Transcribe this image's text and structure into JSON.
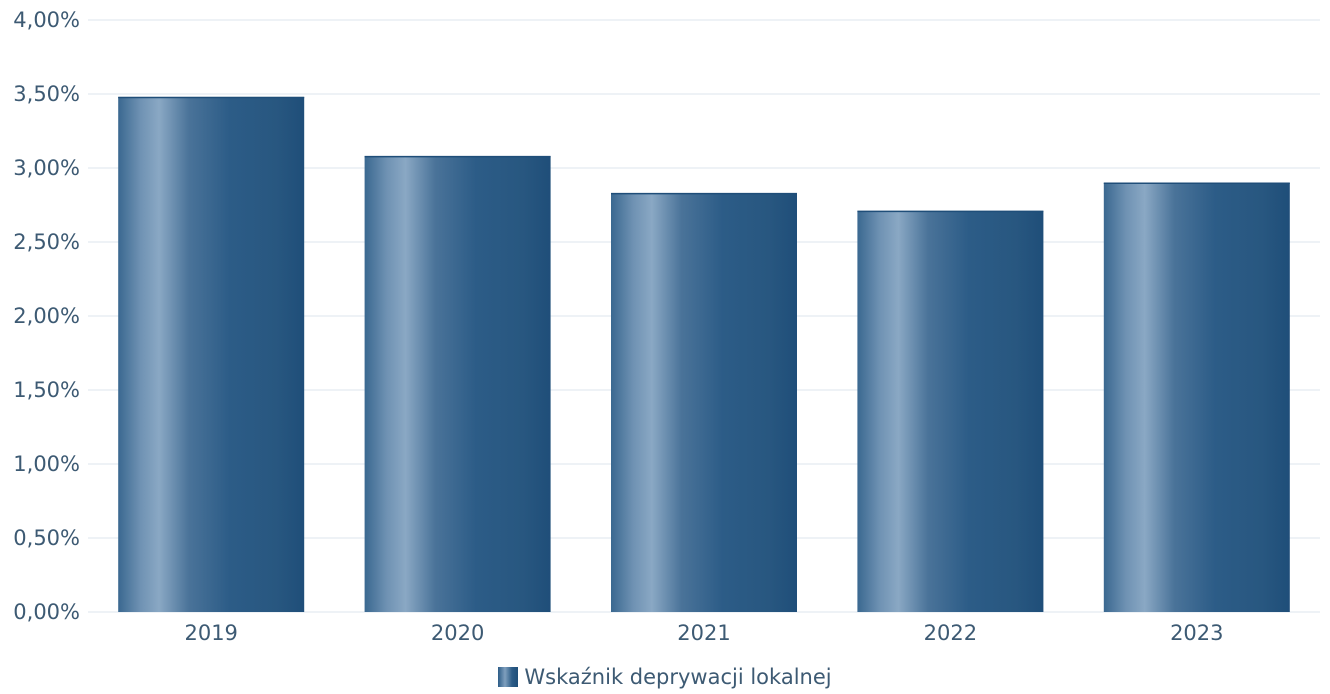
{
  "chart_data": {
    "type": "bar",
    "categories": [
      "2019",
      "2020",
      "2021",
      "2022",
      "2023"
    ],
    "series": [
      {
        "name": "Wskaźnik deprywacji lokalnej",
        "values": [
          3.48,
          3.08,
          2.83,
          2.71,
          2.9
        ]
      }
    ],
    "ylim": [
      0,
      4
    ],
    "yticks": [
      {
        "value": 0.0,
        "label": "0,00%"
      },
      {
        "value": 0.5,
        "label": "0,50%"
      },
      {
        "value": 1.0,
        "label": "1,00%"
      },
      {
        "value": 1.5,
        "label": "1,50%"
      },
      {
        "value": 2.0,
        "label": "2,00%"
      },
      {
        "value": 2.5,
        "label": "2,50%"
      },
      {
        "value": 3.0,
        "label": "3,00%"
      },
      {
        "value": 3.5,
        "label": "3,50%"
      },
      {
        "value": 4.0,
        "label": "4,00%"
      }
    ],
    "grid": true,
    "legend_position": "bottom",
    "colors": {
      "bar": "#2c5c87",
      "bar_highlight": "#8aa8c4",
      "text": "#3d5a73",
      "grid": "#dde6ee"
    }
  }
}
